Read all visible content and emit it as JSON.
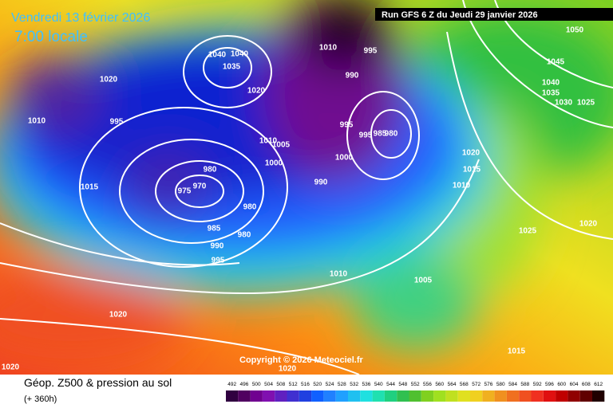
{
  "header": {
    "date": "Vendredi 13 février 2026",
    "time": "7:00 locale",
    "run": "Run GFS 6 Z du Jeudi 29 janvier 2026"
  },
  "copyright": "Copyright © 2026 Meteociel.fr",
  "legend": {
    "title": "Géop. Z500 & pression au sol",
    "subtitle": "(+ 360h)",
    "ticks": [
      492,
      496,
      500,
      504,
      508,
      512,
      516,
      520,
      524,
      528,
      532,
      536,
      540,
      544,
      548,
      552,
      556,
      560,
      564,
      568,
      572,
      576,
      580,
      584,
      588,
      592,
      596,
      600,
      604,
      608,
      612
    ]
  },
  "isobar_labels": [
    1010,
    1020,
    995,
    1015,
    980,
    975,
    970,
    985,
    990,
    995,
    980,
    980,
    1040,
    1040,
    1035,
    1020,
    1010,
    1005,
    1000,
    1010,
    995,
    990,
    995,
    1000,
    990,
    995,
    985,
    980,
    1020,
    1015,
    1010,
    1025,
    1020,
    1010,
    1005,
    1020,
    1020,
    1020,
    1015,
    1050,
    1045,
    1040,
    1035,
    1030,
    1025
  ]
}
